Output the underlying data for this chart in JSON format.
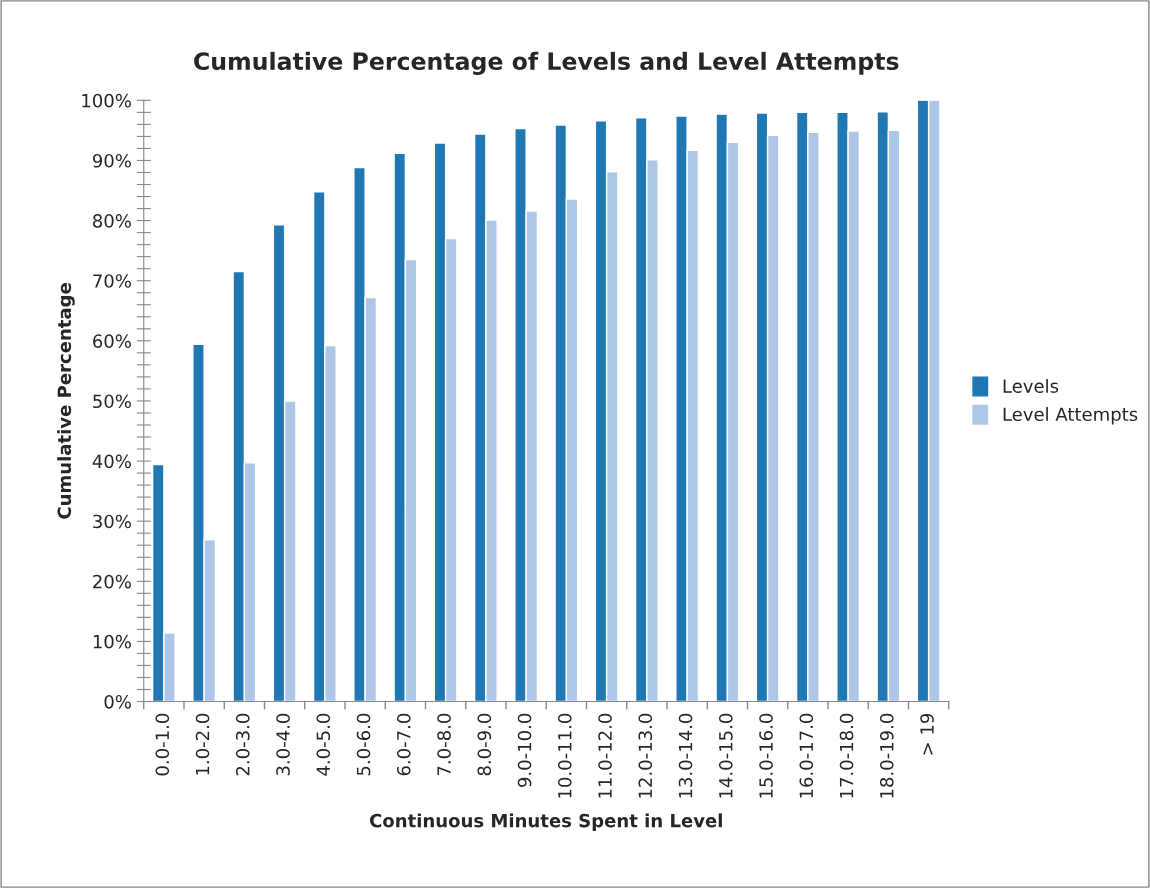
{
  "chart_data": {
    "type": "bar",
    "title": "Cumulative Percentage of Levels and Level Attempts",
    "xlabel": "Continuous Minutes Spent in Level",
    "ylabel": "Cumulative Percentage",
    "categories": [
      "0.0-1.0",
      "1.0-2.0",
      "2.0-3.0",
      "3.0-4.0",
      "4.0-5.0",
      "5.0-6.0",
      "6.0-7.0",
      "7.0-8.0",
      "8.0-9.0",
      "9.0-10.0",
      "10.0-11.0",
      "11.0-12.0",
      "12.0-13.0",
      "13.0-14.0",
      "14.0-15.0",
      "15.0-16.0",
      "16.0-17.0",
      "17.0-18.0",
      "18.0-19.0",
      "> 19"
    ],
    "series": [
      {
        "name": "Levels",
        "color": "#1f77b4",
        "values": [
          39.4,
          59.4,
          71.5,
          79.3,
          84.8,
          88.8,
          91.2,
          92.9,
          94.4,
          95.3,
          95.9,
          96.6,
          97.1,
          97.4,
          97.7,
          97.9,
          98.0,
          98.0,
          98.1,
          100
        ]
      },
      {
        "name": "Level Attempts",
        "color": "#aec7e8",
        "values": [
          11.4,
          26.9,
          39.7,
          50.0,
          59.2,
          67.2,
          73.5,
          77.0,
          80.1,
          81.6,
          83.6,
          88.1,
          90.1,
          91.7,
          93.0,
          94.2,
          94.7,
          94.9,
          95.0,
          100
        ]
      }
    ],
    "ylim": [
      0,
      100
    ],
    "yticks": [
      {
        "value": 0,
        "label": "0%"
      },
      {
        "value": 2,
        "label": null
      },
      {
        "value": 4,
        "label": null
      },
      {
        "value": 6,
        "label": null
      },
      {
        "value": 8,
        "label": null
      },
      {
        "value": 10,
        "label": "10%"
      },
      {
        "value": 12,
        "label": null
      },
      {
        "value": 14,
        "label": null
      },
      {
        "value": 16,
        "label": null
      },
      {
        "value": 18,
        "label": null
      },
      {
        "value": 20,
        "label": "20%"
      },
      {
        "value": 22,
        "label": null
      },
      {
        "value": 24,
        "label": null
      },
      {
        "value": 26,
        "label": null
      },
      {
        "value": 28,
        "label": null
      },
      {
        "value": 30,
        "label": "30%"
      },
      {
        "value": 32,
        "label": null
      },
      {
        "value": 34,
        "label": null
      },
      {
        "value": 36,
        "label": null
      },
      {
        "value": 38,
        "label": null
      },
      {
        "value": 40,
        "label": "40%"
      },
      {
        "value": 42,
        "label": null
      },
      {
        "value": 44,
        "label": null
      },
      {
        "value": 46,
        "label": null
      },
      {
        "value": 48,
        "label": null
      },
      {
        "value": 50,
        "label": "50%"
      },
      {
        "value": 52,
        "label": null
      },
      {
        "value": 54,
        "label": null
      },
      {
        "value": 56,
        "label": null
      },
      {
        "value": 58,
        "label": null
      },
      {
        "value": 60,
        "label": "60%"
      },
      {
        "value": 62,
        "label": null
      },
      {
        "value": 64,
        "label": null
      },
      {
        "value": 66,
        "label": null
      },
      {
        "value": 68,
        "label": null
      },
      {
        "value": 70,
        "label": "70%"
      },
      {
        "value": 72,
        "label": null
      },
      {
        "value": 74,
        "label": null
      },
      {
        "value": 76,
        "label": null
      },
      {
        "value": 78,
        "label": null
      },
      {
        "value": 80,
        "label": "80%"
      },
      {
        "value": 82,
        "label": null
      },
      {
        "value": 84,
        "label": null
      },
      {
        "value": 86,
        "label": null
      },
      {
        "value": 88,
        "label": null
      },
      {
        "value": 90,
        "label": "90%"
      },
      {
        "value": 92,
        "label": null
      },
      {
        "value": 94,
        "label": null
      },
      {
        "value": 96,
        "label": null
      },
      {
        "value": 98,
        "label": null
      },
      {
        "value": 100,
        "label": "100%"
      }
    ],
    "grid": false,
    "legend": "right"
  }
}
